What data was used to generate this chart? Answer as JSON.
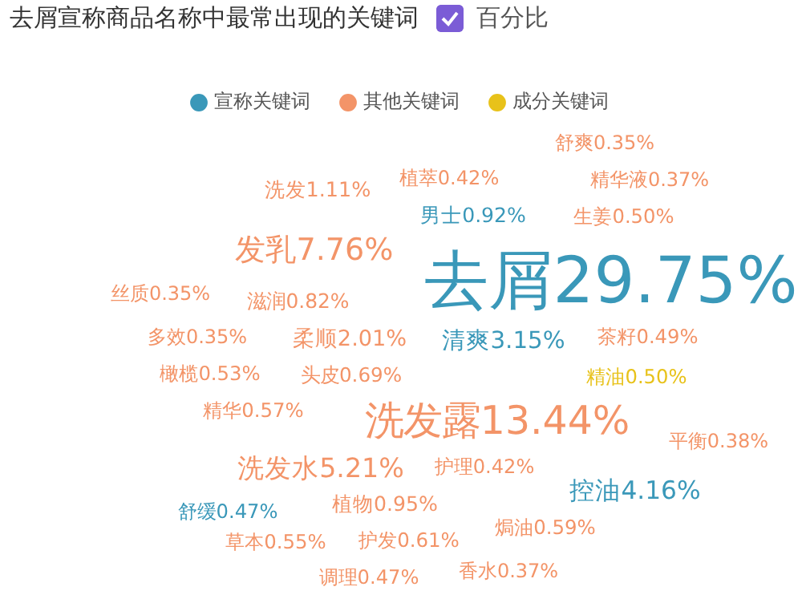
{
  "chart_data": {
    "type": "other",
    "title": "去屑宣称商品名称中最常出现的关键词",
    "annotations": [
      "百分比"
    ],
    "legend": "top",
    "categories": [
      "舒爽",
      "植萃",
      "精华液",
      "洗发",
      "男士",
      "生姜",
      "发乳",
      "去屑",
      "丝质",
      "滋润",
      "多效",
      "柔顺",
      "清爽",
      "茶籽",
      "橄榄",
      "头皮",
      "精油",
      "精华",
      "洗发露",
      "平衡",
      "洗发水",
      "护理",
      "控油",
      "舒缓",
      "植物",
      "焗油",
      "草本",
      "护发",
      "调理",
      "香水"
    ],
    "series": [
      {
        "name": "宣称关键词",
        "color": "#3a98b9",
        "values": [
          null,
          null,
          null,
          null,
          0.92,
          null,
          null,
          29.75,
          null,
          null,
          null,
          null,
          3.15,
          null,
          null,
          null,
          null,
          null,
          null,
          null,
          null,
          null,
          4.16,
          0.47,
          null,
          null,
          null,
          null,
          null,
          null
        ],
        "value_labels": [
          null,
          null,
          null,
          null,
          "0.92%",
          null,
          null,
          "29.75%",
          null,
          null,
          null,
          null,
          "3.15%",
          null,
          null,
          null,
          null,
          null,
          null,
          null,
          null,
          null,
          "4.16%",
          "0.47%",
          null,
          null,
          null,
          null,
          null,
          null
        ]
      },
      {
        "name": "其他关键词",
        "color": "#f39468",
        "values": [
          0.35,
          0.42,
          0.37,
          1.11,
          null,
          0.5,
          7.76,
          null,
          0.35,
          0.82,
          0.35,
          2.01,
          null,
          0.49,
          0.53,
          0.69,
          null,
          0.57,
          13.44,
          0.38,
          5.21,
          0.42,
          null,
          null,
          0.95,
          0.59,
          0.55,
          0.61,
          0.47,
          0.37
        ],
        "value_labels": [
          "0.35%",
          "0.42%",
          "0.37%",
          "1.11%",
          null,
          "0.50%",
          "7.76%",
          null,
          "0.35%",
          "0.82%",
          "0.35%",
          "2.01%",
          null,
          "0.49%",
          "0.53%",
          "0.69%",
          null,
          "0.57%",
          "13.44%",
          "0.38%",
          "5.21%",
          "0.42%",
          null,
          null,
          "0.95%",
          "0.59%",
          "0.55%",
          "0.61%",
          "0.47%",
          "0.37%"
        ]
      },
      {
        "name": "成分关键词",
        "color": "#e8c21a",
        "values": [
          null,
          null,
          null,
          null,
          null,
          null,
          null,
          null,
          null,
          null,
          null,
          null,
          null,
          null,
          null,
          null,
          0.5,
          null,
          null,
          null,
          null,
          null,
          null,
          null,
          null,
          null,
          null,
          null,
          null,
          null
        ],
        "value_labels": [
          null,
          null,
          null,
          null,
          null,
          null,
          null,
          null,
          null,
          null,
          null,
          null,
          null,
          null,
          null,
          null,
          "0.50%",
          null,
          null,
          null,
          null,
          null,
          null,
          null,
          null,
          null,
          null,
          null,
          null,
          null
        ]
      }
    ]
  }
}
